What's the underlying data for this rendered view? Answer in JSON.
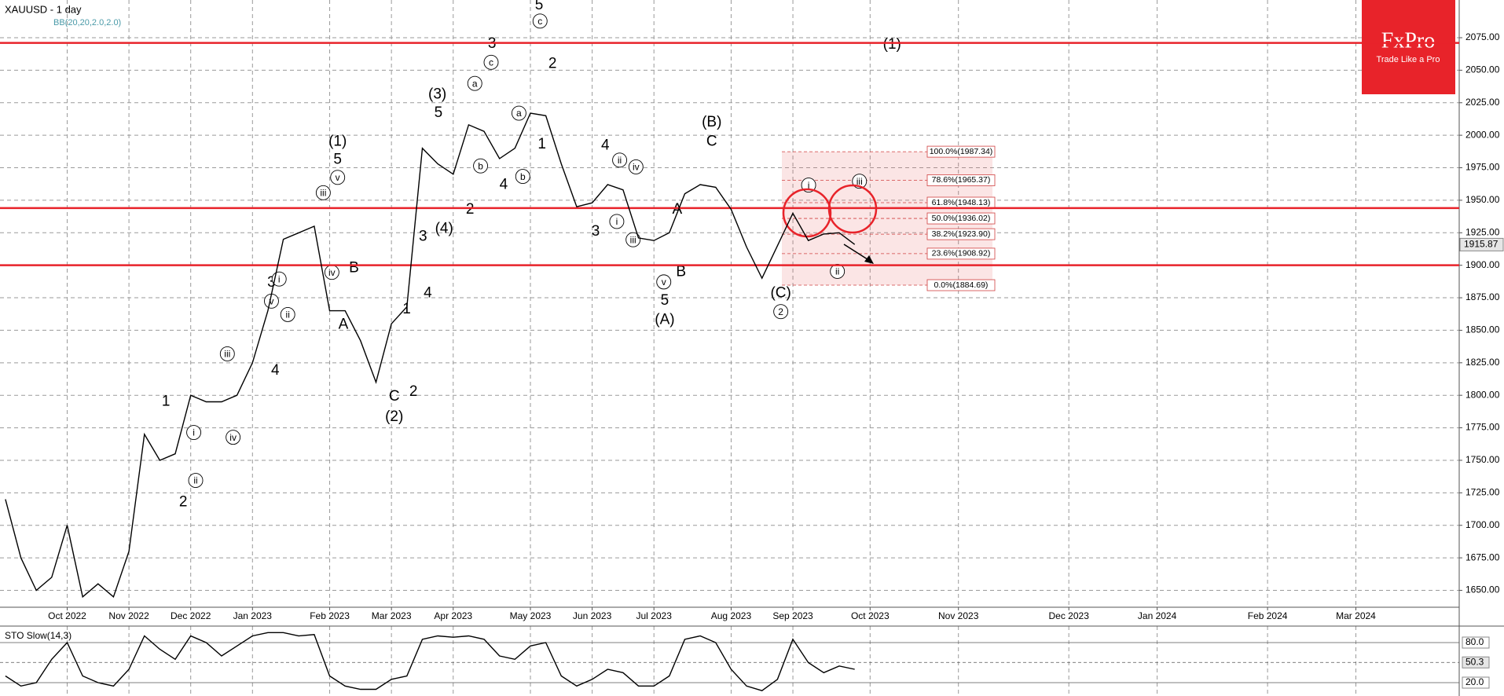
{
  "chart_data": {
    "type": "line",
    "title": "XAUUSD - 1 day",
    "subtitle": "BB(20,20,2.0,2.0)",
    "categories": [
      null,
      null,
      null,
      null,
      "Oct 2022",
      null,
      null,
      null,
      "Nov 2022",
      null,
      null,
      null,
      "Dec 2022",
      null,
      null,
      null,
      "Jan 2023",
      null,
      null,
      null,
      null,
      "Feb 2023",
      null,
      null,
      null,
      "Mar 2023",
      null,
      null,
      null,
      "Apr 2023",
      null,
      null,
      null,
      null,
      "May 2023",
      null,
      null,
      null,
      "Jun 2023",
      null,
      null,
      null,
      "Jul 2023",
      null,
      null,
      null,
      null,
      "Aug 2023",
      null,
      null,
      null,
      "Sep 2023",
      null,
      null,
      null,
      null,
      "Oct 2023",
      null,
      null,
      null,
      "Nov 2023",
      null,
      null,
      null,
      null,
      "Dec 2023",
      null,
      null,
      null,
      "Jan 2024",
      null,
      null,
      null,
      null,
      "Feb 2024",
      null,
      null,
      null,
      "Mar 2024",
      null
    ],
    "series": [
      {
        "name": "XAUUSD",
        "color": "#000000",
        "values": [
          1720,
          1675,
          1650,
          1660,
          1700,
          1645,
          1655,
          1645,
          1680,
          1770,
          1750,
          1755,
          1800,
          1795,
          1795,
          1800,
          1825,
          1865,
          1920,
          1925,
          1930,
          1865,
          1865,
          1842,
          1810,
          1855,
          1868,
          1990,
          1978,
          1970,
          2008,
          2003,
          1982,
          1990,
          2017,
          2015,
          1978,
          1945,
          1948,
          1962,
          1958,
          1921,
          1919,
          1925,
          1955,
          1962,
          1960,
          1943,
          1914,
          1890,
          1915,
          1940,
          1919,
          1924,
          1925,
          1916,
          null,
          null,
          null,
          null,
          null,
          null,
          null,
          null,
          null,
          null,
          null,
          null,
          null,
          null,
          null,
          null,
          null,
          null,
          null,
          null,
          null,
          null,
          null,
          null
        ]
      }
    ],
    "ylim": [
      1637,
      2104
    ],
    "yticks": [
      {
        "value": 1650,
        "label": "1650.00"
      },
      {
        "value": 1675,
        "label": "1675.00"
      },
      {
        "value": 1700,
        "label": "1700.00"
      },
      {
        "value": 1725,
        "label": "1725.00"
      },
      {
        "value": 1750,
        "label": "1750.00"
      },
      {
        "value": 1775,
        "label": "1775.00"
      },
      {
        "value": 1800,
        "label": "1800.00"
      },
      {
        "value": 1825,
        "label": "1825.00"
      },
      {
        "value": 1850,
        "label": "1850.00"
      },
      {
        "value": 1875,
        "label": "1875.00"
      },
      {
        "value": 1900,
        "label": "1900.00"
      },
      {
        "value": 1925,
        "label": "1925.00"
      },
      {
        "value": 1950,
        "label": "1950.00"
      },
      {
        "value": 1975,
        "label": "1975.00"
      },
      {
        "value": 2000,
        "label": "2000.00"
      },
      {
        "value": 2025,
        "label": "2025.00"
      },
      {
        "value": 2050,
        "label": "2050.00"
      },
      {
        "value": 2075,
        "label": "2075.00"
      }
    ],
    "grid": true,
    "last_price": 1915.87,
    "levels": [
      2071,
      1944,
      1900
    ],
    "level_color": "#e8232a",
    "fibonacci": [
      {
        "value": 1987.34,
        "label": "100.0%(1987.34)"
      },
      {
        "value": 1965.37,
        "label": "78.6%(1965.37)"
      },
      {
        "value": 1948.13,
        "label": "61.8%(1948.13)"
      },
      {
        "value": 1936.02,
        "label": "50.0%(1936.02)"
      },
      {
        "value": 1923.9,
        "label": "38.2%(1923.90)"
      },
      {
        "value": 1908.92,
        "label": "23.6%(1908.92)"
      },
      {
        "value": 1884.69,
        "label": "0.0%(1884.69)"
      }
    ],
    "annotations": [
      "(1)",
      "5",
      "(2)",
      "(3)",
      "5",
      "(4)",
      "5",
      "(A)",
      "5",
      "(B)",
      "C",
      "(C)",
      "(1)",
      "A",
      "B",
      "C",
      "1",
      "2",
      "3",
      "4",
      "1",
      "2",
      "3",
      "4",
      "3",
      "4",
      "2",
      "1",
      "2",
      "3",
      "4",
      "A",
      "B",
      "v",
      "iv",
      "iii",
      "c",
      "a",
      "b",
      "a",
      "b",
      "c",
      "ii",
      "iv",
      "i",
      "iii",
      "v",
      "i",
      "ii",
      "iii",
      "2",
      "i",
      "ii",
      "iv",
      "iii",
      "v",
      "i",
      "ii"
    ],
    "indicator": {
      "type": "line",
      "title": "STO Slow(14,3)",
      "color": "#000000",
      "values": [
        30,
        15,
        20,
        55,
        80,
        30,
        20,
        15,
        40,
        90,
        70,
        55,
        90,
        80,
        60,
        75,
        90,
        95,
        95,
        90,
        92,
        30,
        15,
        10,
        10,
        25,
        30,
        85,
        90,
        88,
        90,
        85,
        60,
        55,
        75,
        80,
        30,
        15,
        25,
        40,
        35,
        15,
        15,
        30,
        85,
        90,
        80,
        40,
        15,
        8,
        25,
        85,
        50,
        35,
        45,
        40,
        null,
        null,
        null,
        null,
        null,
        null,
        null,
        null,
        null,
        null,
        null,
        null,
        null,
        null,
        null,
        null,
        null,
        null,
        null,
        null,
        null,
        null,
        null,
        null
      ],
      "ylim": [
        0,
        100
      ],
      "yticks": [
        {
          "value": 80,
          "label": "80.0"
        },
        {
          "value": 20,
          "label": "20.0"
        }
      ],
      "last_value": 50.3
    }
  },
  "branding": {
    "logo": "FxPro",
    "tagline": "Trade Like a Pro"
  }
}
